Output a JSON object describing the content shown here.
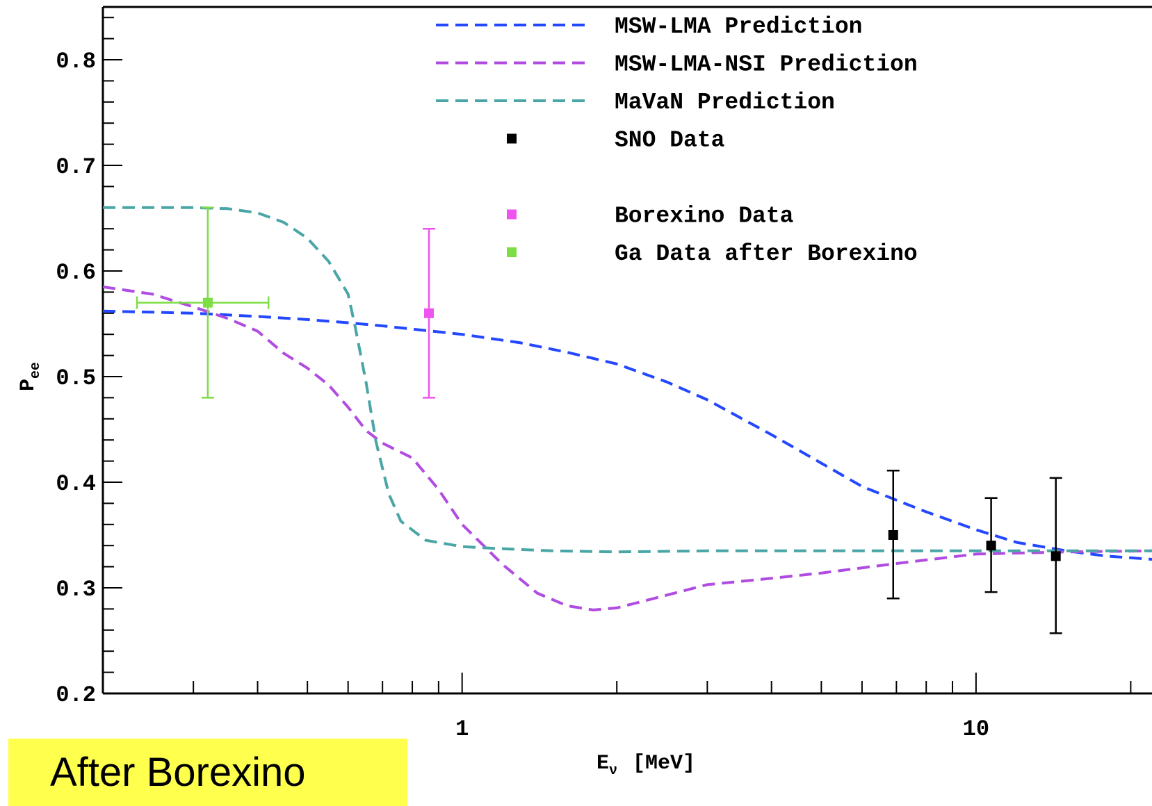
{
  "chart_data": {
    "type": "line",
    "xlabel": "E",
    "xlabel_sub": "ν",
    "xlabel_unit": "[MeV]",
    "ylabel": "P",
    "ylabel_sub": "ee",
    "xscale": "log",
    "xlim": [
      0.2,
      22
    ],
    "ylim": [
      0.2,
      0.85
    ],
    "xticks": [
      {
        "value": 1,
        "label": "1"
      },
      {
        "value": 10,
        "label": "10"
      }
    ],
    "yticks": [
      {
        "value": 0.2,
        "label": "0.2"
      },
      {
        "value": 0.3,
        "label": "0.3"
      },
      {
        "value": 0.4,
        "label": "0.4"
      },
      {
        "value": 0.5,
        "label": "0.5"
      },
      {
        "value": 0.6,
        "label": "0.6"
      },
      {
        "value": 0.7,
        "label": "0.7"
      },
      {
        "value": 0.8,
        "label": "0.8"
      }
    ],
    "legend_position": "top-right",
    "curves": [
      {
        "name": "MSW-LMA Prediction",
        "color": "#2448ff",
        "style": "dashed",
        "x": [
          0.2,
          0.25,
          0.3,
          0.4,
          0.5,
          0.6,
          0.7,
          0.8,
          1.0,
          1.3,
          1.6,
          2.0,
          2.5,
          3.0,
          4.0,
          5.0,
          6.0,
          7.0,
          8.0,
          10.0,
          12.0,
          15.0,
          18.0,
          22.0
        ],
        "y": [
          0.562,
          0.561,
          0.56,
          0.557,
          0.554,
          0.551,
          0.548,
          0.545,
          0.54,
          0.532,
          0.523,
          0.512,
          0.495,
          0.478,
          0.445,
          0.418,
          0.396,
          0.383,
          0.372,
          0.355,
          0.343,
          0.335,
          0.33,
          0.327
        ]
      },
      {
        "name": "MSW-LMA-NSI Prediction",
        "color": "#b04ce0",
        "style": "dashed",
        "x": [
          0.2,
          0.25,
          0.3,
          0.35,
          0.4,
          0.45,
          0.5,
          0.55,
          0.6,
          0.65,
          0.7,
          0.8,
          0.9,
          1.0,
          1.2,
          1.4,
          1.6,
          1.8,
          2.0,
          2.5,
          3.0,
          4.0,
          5.0,
          7.0,
          10.0,
          15.0,
          22.0
        ],
        "y": [
          0.585,
          0.578,
          0.566,
          0.555,
          0.543,
          0.522,
          0.508,
          0.492,
          0.471,
          0.449,
          0.437,
          0.423,
          0.393,
          0.36,
          0.322,
          0.295,
          0.283,
          0.279,
          0.281,
          0.293,
          0.303,
          0.309,
          0.314,
          0.323,
          0.332,
          0.334,
          0.335
        ]
      },
      {
        "name": "MaVaN Prediction",
        "color": "#4aa6a6",
        "style": "dashed",
        "x": [
          0.2,
          0.3,
          0.35,
          0.4,
          0.45,
          0.5,
          0.55,
          0.6,
          0.62,
          0.65,
          0.68,
          0.72,
          0.76,
          0.85,
          1.0,
          1.2,
          1.5,
          2.0,
          3.0,
          5.0,
          10.0,
          22.0
        ],
        "y": [
          0.66,
          0.66,
          0.659,
          0.655,
          0.646,
          0.631,
          0.609,
          0.578,
          0.546,
          0.495,
          0.438,
          0.389,
          0.363,
          0.345,
          0.339,
          0.337,
          0.335,
          0.334,
          0.335,
          0.335,
          0.335,
          0.335
        ]
      }
    ],
    "points": [
      {
        "name": "SNO Data",
        "color": "#000000",
        "data": [
          {
            "x": 6.9,
            "y": 0.35,
            "ylo": 0.29,
            "yhi": 0.411
          },
          {
            "x": 10.7,
            "y": 0.34,
            "ylo": 0.296,
            "yhi": 0.385
          },
          {
            "x": 14.3,
            "y": 0.33,
            "ylo": 0.257,
            "yhi": 0.404
          }
        ]
      },
      {
        "name": "Borexino Data",
        "color": "#ee55ee",
        "data": [
          {
            "x": 0.862,
            "y": 0.56,
            "ylo": 0.48,
            "yhi": 0.64
          }
        ]
      },
      {
        "name": "Ga Data after Borexino",
        "color": "#7ddd44",
        "data": [
          {
            "x": 0.32,
            "y": 0.57,
            "ylo": 0.48,
            "yhi": 0.66,
            "xlo": 0.233,
            "xhi": 0.42
          }
        ]
      }
    ],
    "legend": [
      {
        "label": "MSW-LMA Prediction",
        "kind": "line",
        "color": "#2448ff"
      },
      {
        "label": "MSW-LMA-NSI Prediction",
        "kind": "line",
        "color": "#b04ce0"
      },
      {
        "label": "MaVaN Prediction",
        "kind": "line",
        "color": "#4aa6a6"
      },
      {
        "label": "SNO Data",
        "kind": "marker",
        "color": "#000000"
      },
      {
        "label": "",
        "kind": "spacer",
        "color": ""
      },
      {
        "label": "Borexino Data",
        "kind": "marker",
        "color": "#ee55ee"
      },
      {
        "label": "Ga Data after Borexino",
        "kind": "marker",
        "color": "#7ddd44"
      }
    ]
  },
  "banner": {
    "text": "After Borexino",
    "color": "#ffff4d"
  }
}
